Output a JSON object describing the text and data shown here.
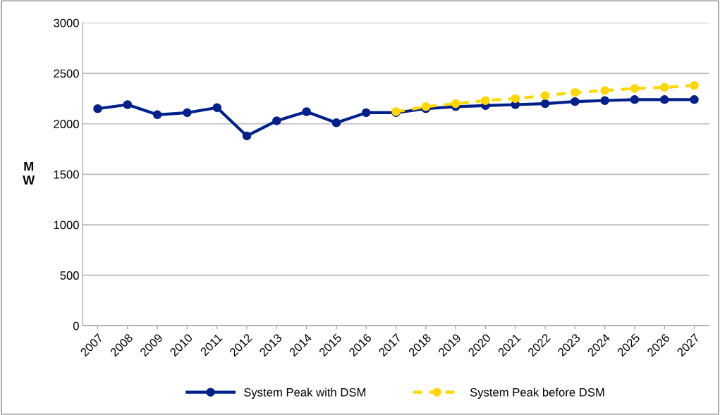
{
  "chart_data": {
    "type": "line",
    "ylabel": "M\nW",
    "categories": [
      "2007",
      "2008",
      "2009",
      "2010",
      "2011",
      "2012",
      "2013",
      "2014",
      "2015",
      "2016",
      "2017",
      "2018",
      "2019",
      "2020",
      "2021",
      "2022",
      "2023",
      "2024",
      "2025",
      "2026",
      "2027"
    ],
    "series": [
      {
        "name": "System Peak with DSM",
        "color": "#00208a",
        "line_style": "solid",
        "values": [
          2150,
          2190,
          2090,
          2110,
          2160,
          1880,
          2030,
          2120,
          2010,
          2110,
          2110,
          2150,
          2170,
          2180,
          2190,
          2200,
          2220,
          2230,
          2240,
          2240,
          2240
        ]
      },
      {
        "name": "System Peak before DSM",
        "color": "#ffd700",
        "line_style": "dashed",
        "values": [
          null,
          null,
          null,
          null,
          null,
          null,
          null,
          null,
          null,
          null,
          2120,
          2170,
          2200,
          2230,
          2250,
          2280,
          2310,
          2330,
          2350,
          2360,
          2380
        ]
      }
    ],
    "ylim": [
      0,
      3000
    ],
    "yticks": [
      0,
      500,
      1000,
      1500,
      2000,
      2500,
      3000
    ],
    "grid": "y",
    "legend": "bottom",
    "marker": "circle"
  }
}
